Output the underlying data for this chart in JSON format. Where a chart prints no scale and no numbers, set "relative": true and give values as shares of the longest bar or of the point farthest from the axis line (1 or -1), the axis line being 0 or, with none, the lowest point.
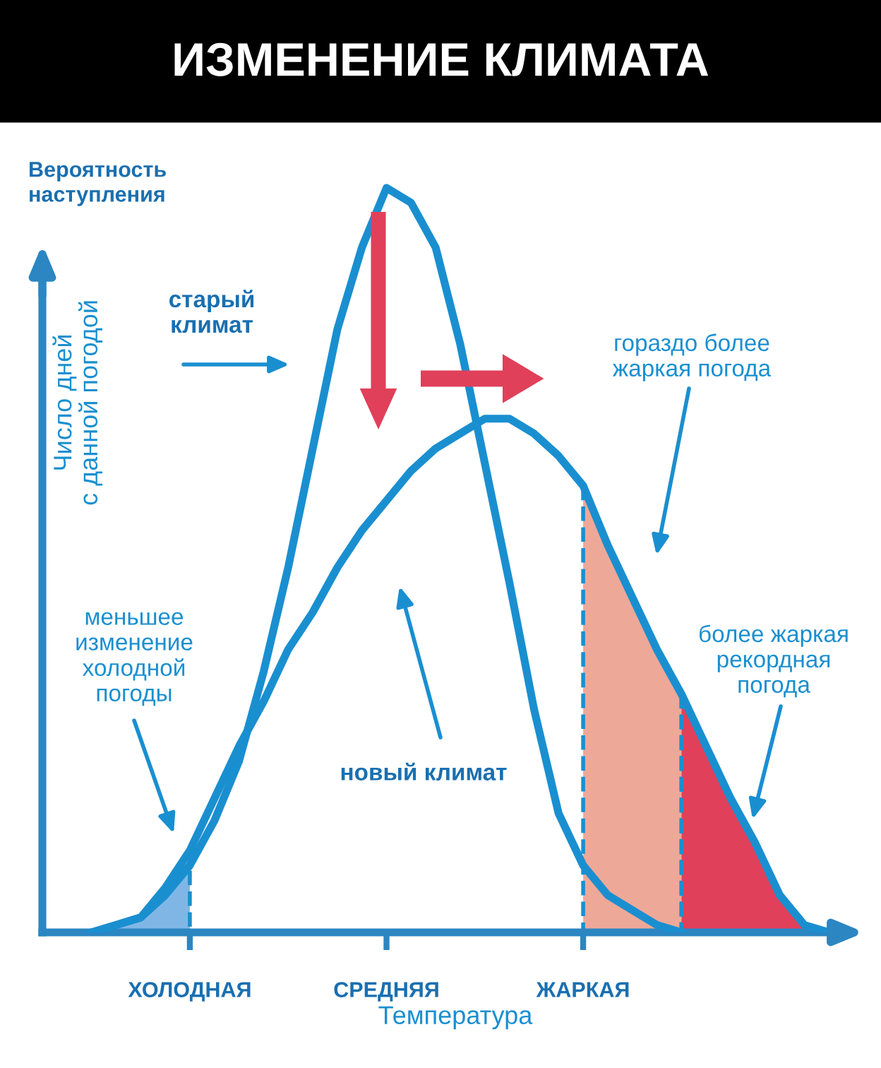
{
  "chart_data": {
    "type": "line",
    "title": "ИЗМЕНЕНИЕ КЛИМАТА",
    "xlabel": "Температура",
    "ylabel": "Число дней\nс данной погодой",
    "relative": true,
    "categories": [
      null,
      null,
      null,
      null,
      "ХОЛОДНАЯ",
      null,
      null,
      null,
      null,
      null,
      null,
      null,
      "СРЕДНЯЯ",
      null,
      null,
      null,
      null,
      null,
      null,
      null,
      "ЖАРКАЯ",
      null,
      null,
      null,
      null,
      null,
      null,
      null,
      null,
      null,
      null
    ],
    "grid": false,
    "marker": "none",
    "line_style": "solid",
    "series": [
      {
        "color": "#1a8fd0",
        "values": [
          0,
          0.01,
          0.02,
          0.05,
          0.09,
          0.15,
          0.23,
          0.35,
          0.49,
          0.65,
          0.81,
          0.92,
          1.0,
          0.98,
          0.92,
          0.79,
          0.63,
          0.47,
          0.3,
          0.16,
          0.09,
          0.05,
          0.03,
          0.01,
          0,
          null,
          null,
          null,
          null,
          null,
          null
        ]
      },
      {
        "color": "#1a8fd0",
        "values": [
          0,
          0.01,
          0.02,
          0.06,
          0.11,
          0.18,
          0.25,
          0.31,
          0.38,
          0.43,
          0.49,
          0.54,
          0.58,
          0.62,
          0.65,
          0.67,
          0.69,
          0.69,
          0.67,
          0.64,
          0.6,
          0.52,
          0.45,
          0.38,
          0.32,
          0.25,
          0.18,
          0.12,
          0.05,
          0.01,
          0
        ]
      },
      {
        "type": "area",
        "color": "#7fb6e6",
        "values": [
          0,
          0.01,
          0.02,
          0.06,
          0.11,
          null,
          null,
          null,
          null,
          null,
          null,
          null,
          null,
          null,
          null,
          null,
          null,
          null,
          null,
          null,
          null,
          null,
          null,
          null,
          null,
          null,
          null,
          null,
          null,
          null,
          null
        ]
      },
      {
        "type": "area",
        "color": "#eea898",
        "values": [
          null,
          null,
          null,
          null,
          null,
          null,
          null,
          null,
          null,
          null,
          null,
          null,
          null,
          null,
          null,
          null,
          null,
          null,
          null,
          null,
          0.6,
          0.52,
          0.45,
          0.38,
          0.32,
          null,
          null,
          null,
          null,
          null,
          null
        ]
      },
      {
        "type": "area",
        "color": "#e0405a",
        "values": [
          null,
          null,
          null,
          null,
          null,
          null,
          null,
          null,
          null,
          null,
          null,
          null,
          null,
          null,
          null,
          null,
          null,
          null,
          null,
          null,
          null,
          null,
          null,
          null,
          0.32,
          0.25,
          0.18,
          0.12,
          0.05,
          0.01,
          0
        ]
      }
    ],
    "annotations": [
      "Вероятность наступления",
      "старый\nклимат",
      "новый климат",
      "гораздо более\nжаркая погода",
      "меньшее\nизменение\nхолодной\nпогоды",
      "более жаркая\nрекордная\nпогода"
    ]
  }
}
